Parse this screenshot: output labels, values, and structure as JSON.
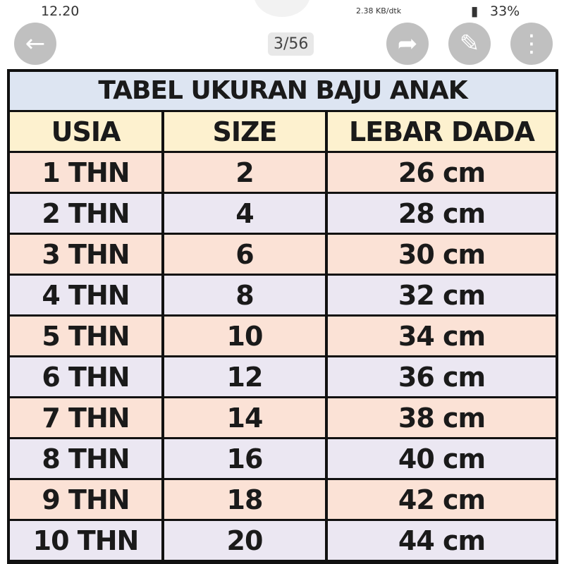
{
  "status": {
    "time": "12.20",
    "speed": "2.38 KB/dtk",
    "battery": "33%"
  },
  "table": {
    "title": "TABEL UKURAN BAJU ANAK",
    "headers": [
      "USIA",
      "SIZE",
      "LEBAR DADA"
    ],
    "rows": [
      [
        "1 THN",
        "2",
        "26 cm"
      ],
      [
        "2 THN",
        "4",
        "28 cm"
      ],
      [
        "3 THN",
        "6",
        "30 cm"
      ],
      [
        "4 THN",
        "8",
        "32 cm"
      ],
      [
        "5 THN",
        "10",
        "34 cm"
      ],
      [
        "6 THN",
        "12",
        "36 cm"
      ],
      [
        "7 THN",
        "14",
        "38 cm"
      ],
      [
        "8 THN",
        "16",
        "40 cm"
      ],
      [
        "9 THN",
        "18",
        "42 cm"
      ],
      [
        "10 THN",
        "20",
        "44 cm"
      ]
    ]
  },
  "viewer": {
    "counter": "3/56",
    "icons": [
      "back-arrow-icon",
      "share-icon",
      "edit-icon",
      "more-icon"
    ]
  }
}
